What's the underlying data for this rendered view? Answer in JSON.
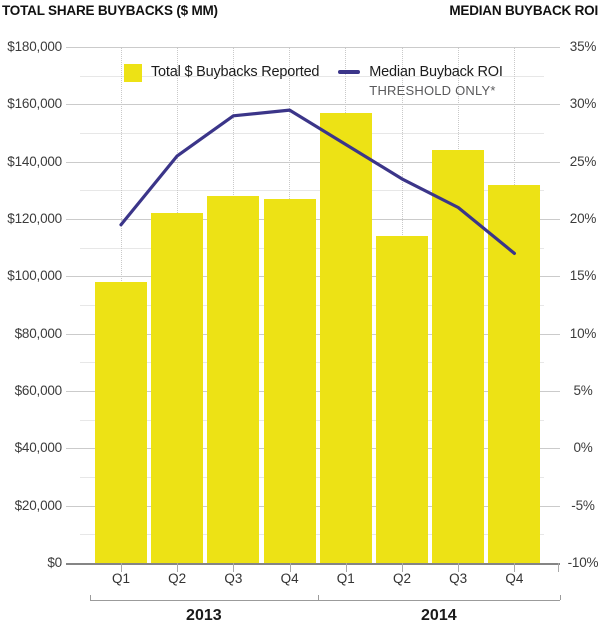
{
  "header": {
    "left_title": "TOTAL SHARE BUYBACKS ($ MM)",
    "right_title": "MEDIAN BUYBACK ROI"
  },
  "legend": {
    "bars_label": "Total $ Buybacks Reported",
    "line_label": "Median Buyback ROI",
    "line_sublabel": "THRESHOLD ONLY*"
  },
  "colors": {
    "bar": "#EDE215",
    "line": "#3B3589",
    "major_grid": "#cbcbcb",
    "minor_grid": "#e7e7e7",
    "baseline": "#858585"
  },
  "chart_data": {
    "type": "bar+line",
    "categories": [
      "Q1",
      "Q2",
      "Q3",
      "Q4",
      "Q1",
      "Q2",
      "Q3",
      "Q4"
    ],
    "year_groups": [
      {
        "label": "2013",
        "span": 4
      },
      {
        "label": "2014",
        "span": 4
      }
    ],
    "series": [
      {
        "name": "Total $ Buybacks Reported",
        "type": "bar",
        "axis": "left",
        "values": [
          98000,
          122000,
          128000,
          127000,
          157000,
          114000,
          144000,
          132000
        ]
      },
      {
        "name": "Median Buyback ROI (Threshold Only*)",
        "type": "line",
        "axis": "right",
        "values": [
          19.5,
          25.5,
          29,
          29.5,
          26.5,
          23.5,
          21,
          17
        ]
      }
    ],
    "left_axis": {
      "title": "TOTAL SHARE BUYBACKS ($ MM)",
      "min": 0,
      "max": 180000,
      "step": 20000,
      "tick_labels": [
        "$180,000",
        "$160,000",
        "$140,000",
        "$120,000",
        "$100,000",
        "$80,000",
        "$60,000",
        "$40,000",
        "$20,000",
        "$0"
      ]
    },
    "right_axis": {
      "title": "MEDIAN BUYBACK ROI",
      "min": -10,
      "max": 35,
      "step": 5,
      "tick_labels": [
        "35%",
        "30%",
        "25%",
        "20%",
        "15%",
        "10%",
        "5%",
        "0%",
        "-5%",
        "-10%"
      ]
    },
    "grid": {
      "major": true,
      "minor": true,
      "vertical_dotted": true
    },
    "legend_position": "top-inside"
  }
}
